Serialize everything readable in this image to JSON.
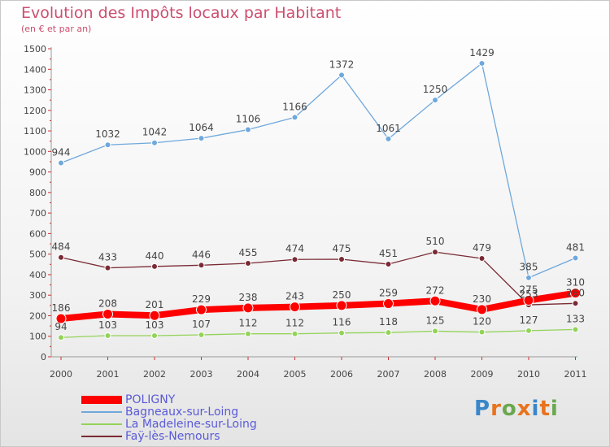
{
  "title": "Evolution des Impôts locaux par Habitant",
  "subtitle": "(en € et par an)",
  "brand": "Proxiti",
  "chart_data": {
    "type": "line",
    "x": [
      "2000",
      "2001",
      "2002",
      "2003",
      "2004",
      "2005",
      "2006",
      "2007",
      "2008",
      "2009",
      "2010",
      "2011"
    ],
    "ylim": [
      0,
      1500
    ],
    "yticks": [
      0,
      100,
      200,
      300,
      400,
      500,
      600,
      700,
      800,
      900,
      1000,
      1100,
      1200,
      1300,
      1400,
      1500
    ],
    "grid": false,
    "legend_position": "bottom-left",
    "series": [
      {
        "name": "POLIGNY",
        "color": "#ff0000",
        "values": [
          186,
          208,
          201,
          229,
          238,
          243,
          250,
          259,
          272,
          230,
          275,
          310
        ],
        "labels": [
          "186",
          "208",
          "201",
          "229",
          "238",
          "243",
          "250",
          "259",
          "272",
          "230",
          "275",
          "310"
        ]
      },
      {
        "name": "Bagneaux-sur-Loing",
        "color": "#6fa8dc",
        "values": [
          944,
          1032,
          1042,
          1064,
          1106,
          1166,
          1372,
          1061,
          1250,
          1429,
          385,
          481
        ],
        "labels": [
          "944",
          "1032",
          "1042",
          "1064",
          "1106",
          "1166",
          "1372",
          "1061",
          "1250",
          "1429",
          "385",
          "481"
        ]
      },
      {
        "name": "La Madeleine-sur-Loing",
        "color": "#93d35a",
        "values": [
          94,
          103,
          103,
          107,
          112,
          112,
          116,
          118,
          125,
          120,
          127,
          133
        ],
        "labels": [
          "94",
          "103",
          "103",
          "107",
          "112",
          "112",
          "116",
          "118",
          "125",
          "120",
          "127",
          "133"
        ]
      },
      {
        "name": "Faÿ-lès-Nemours",
        "color": "#7a2a34",
        "values": [
          484,
          433,
          440,
          446,
          455,
          474,
          475,
          451,
          510,
          479,
          253,
          260
        ],
        "labels": [
          "484",
          "433",
          "440",
          "446",
          "455",
          "474",
          "475",
          "451",
          "510",
          "479",
          "253",
          "260"
        ]
      }
    ]
  }
}
